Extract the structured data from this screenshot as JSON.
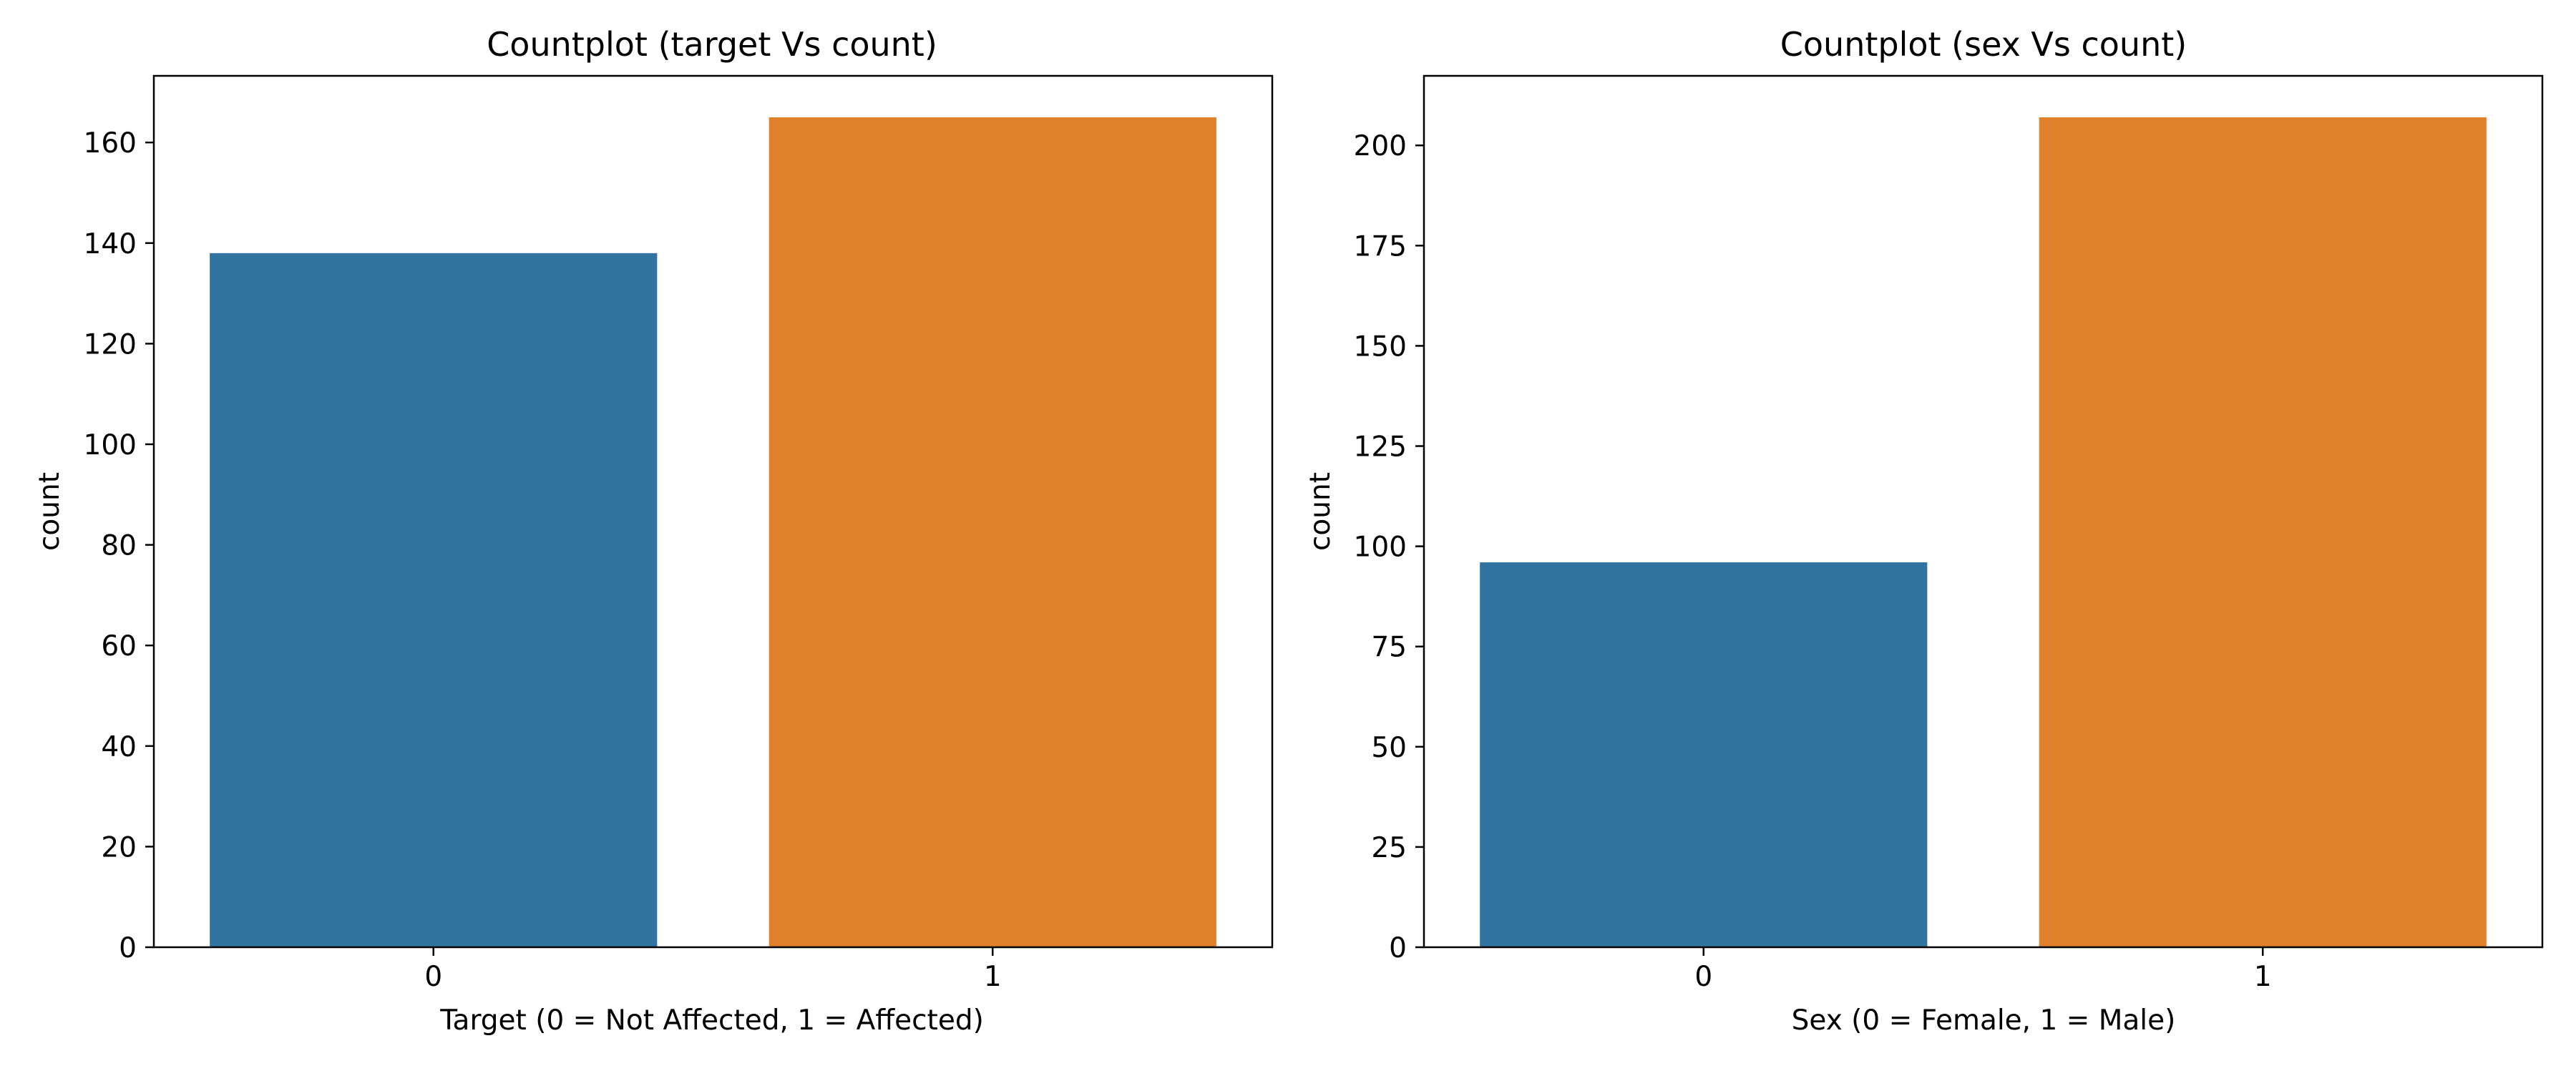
{
  "chart_data": [
    {
      "type": "bar",
      "title": "Countplot (target Vs count)",
      "xlabel": "Target (0 = Not Affected, 1 = Affected)",
      "ylabel": "count",
      "categories": [
        "0",
        "1"
      ],
      "values": [
        138,
        165
      ],
      "colors": [
        "#3274a1",
        "#e1812c"
      ],
      "ylim": [
        0,
        173.25
      ],
      "yticks": [
        0,
        20,
        40,
        60,
        80,
        100,
        120,
        140,
        160
      ],
      "grid": false,
      "legend": "none"
    },
    {
      "type": "bar",
      "title": "Countplot (sex Vs count)",
      "xlabel": "Sex (0 = Female, 1 = Male)",
      "ylabel": "count",
      "categories": [
        "0",
        "1"
      ],
      "values": [
        96,
        207
      ],
      "colors": [
        "#3274a1",
        "#e1812c"
      ],
      "ylim": [
        0,
        217.35
      ],
      "yticks": [
        0,
        25,
        50,
        75,
        100,
        125,
        150,
        175,
        200
      ],
      "grid": false,
      "legend": "none"
    }
  ]
}
